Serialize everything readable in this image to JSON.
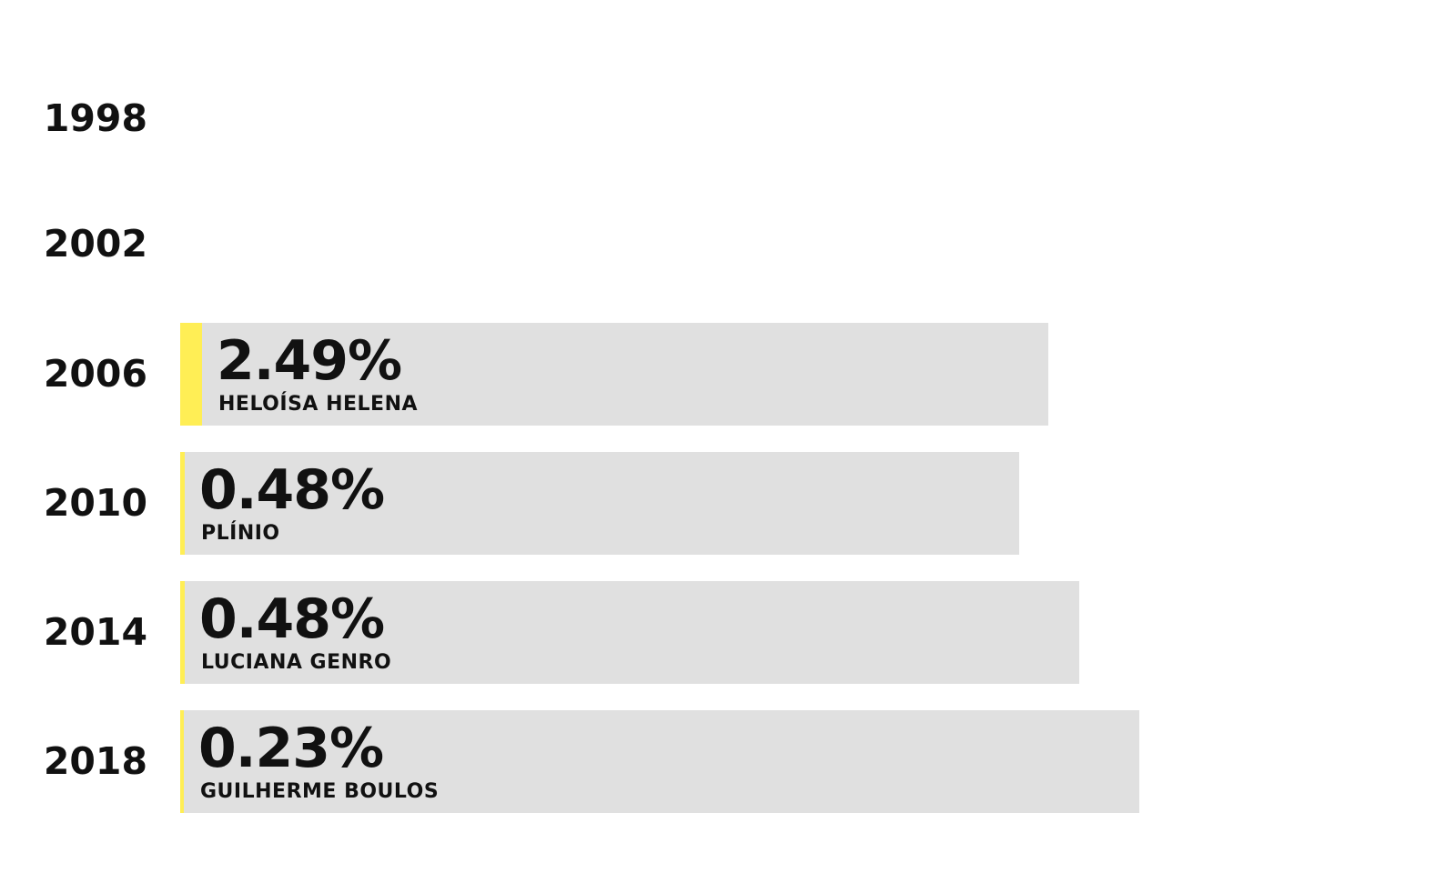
{
  "chart_data": {
    "type": "bar",
    "orientation": "horizontal",
    "categories": [
      "1998",
      "2002",
      "2006",
      "2010",
      "2014",
      "2018"
    ],
    "values": [
      null,
      null,
      2.49,
      0.48,
      0.48,
      0.23
    ],
    "value_labels": [
      "",
      "",
      "2.49%",
      "0.48%",
      "0.48%",
      "0.23%"
    ],
    "candidates": [
      "",
      "",
      "HELOÍSA HELENA",
      "PLÍNIO",
      "LUCIANA GENRO",
      "GUILHERME BOULOS"
    ],
    "title": "",
    "xlabel": "",
    "ylabel": "",
    "grid": false,
    "legend": "none"
  },
  "colors": {
    "bar": "#e0e0e0",
    "accent": "#ffee55",
    "text": "#111111"
  }
}
